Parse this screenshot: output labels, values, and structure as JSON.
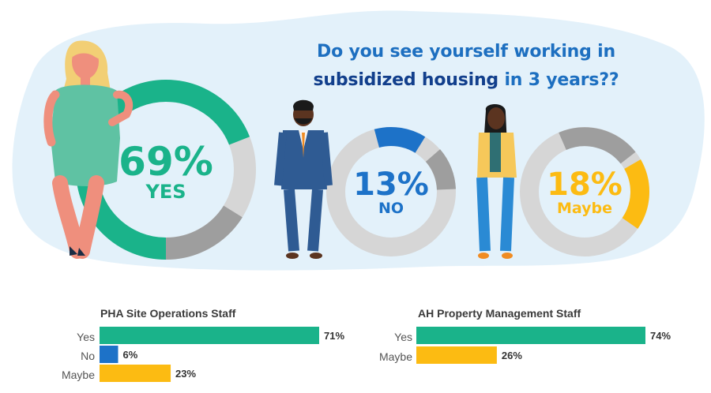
{
  "title": {
    "line1": "Do you see yourself working in",
    "line2_bold": "subsidized housing",
    "line2_rest": " in 3 years??"
  },
  "donuts": [
    {
      "percent": "69%",
      "word": "YES",
      "value": 69,
      "color": "#1ab38a"
    },
    {
      "percent": "13%",
      "word": "NO",
      "value": 13,
      "color": "#1d72c8"
    },
    {
      "percent": "18%",
      "word": "Maybe",
      "value": 18,
      "color": "#fcbb12"
    }
  ],
  "chart_data": [
    {
      "type": "pie",
      "title": "Do you see yourself working in subsidized housing in 3 years??",
      "categories": [
        "YES",
        "NO",
        "Maybe"
      ],
      "values": [
        69,
        13,
        18
      ]
    },
    {
      "type": "bar",
      "title": "PHA Site Operations Staff",
      "categories": [
        "Yes",
        "No",
        "Maybe"
      ],
      "values": [
        71,
        6,
        23
      ],
      "value_labels": [
        "71%",
        "6%",
        "23%"
      ],
      "colors": [
        "#1ab38a",
        "#1d72c8",
        "#fcbb12"
      ]
    },
    {
      "type": "bar",
      "title": "AH Property Management Staff",
      "categories": [
        "Yes",
        "Maybe"
      ],
      "values": [
        74,
        26
      ],
      "value_labels": [
        "74%",
        "26%"
      ],
      "colors": [
        "#1ab38a",
        "#fcbb12"
      ]
    }
  ]
}
